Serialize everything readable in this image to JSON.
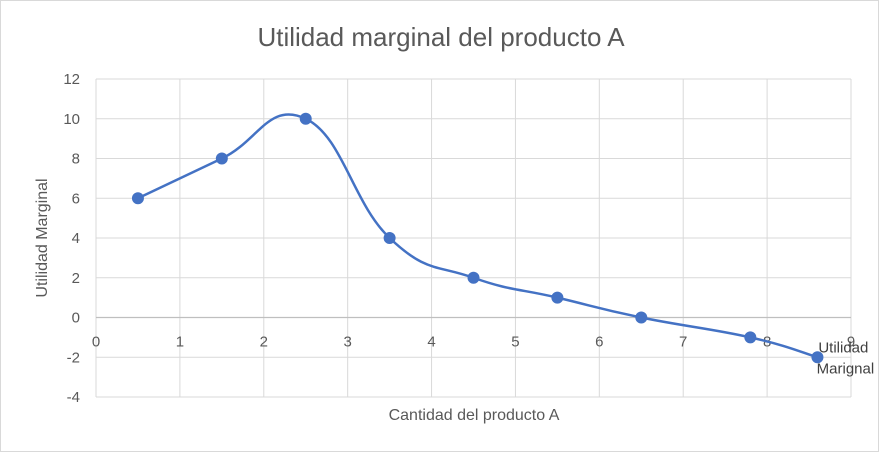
{
  "chart_data": {
    "type": "line",
    "title": "Utilidad marginal del producto A",
    "xlabel": "Cantidad del producto A",
    "ylabel": "Utilidad Marginal",
    "xlim": [
      0,
      9
    ],
    "ylim": [
      -4,
      12
    ],
    "x_ticks": [
      "0",
      "1",
      "2",
      "3",
      "4",
      "5",
      "6",
      "7",
      "8",
      "9"
    ],
    "y_ticks": [
      "-4",
      "-2",
      "0",
      "2",
      "4",
      "6",
      "8",
      "10",
      "12"
    ],
    "grid": true,
    "smooth": true,
    "series": [
      {
        "name": "Utilidad Marignal",
        "color": "#4472c4",
        "x": [
          0.5,
          1.5,
          2.5,
          3.5,
          4.5,
          5.5,
          6.5,
          7.8,
          8.6
        ],
        "y": [
          6,
          8,
          10,
          4,
          2,
          1,
          0,
          -1,
          -2
        ]
      }
    ],
    "series_label_lines": [
      "Utilidad",
      "Marignal"
    ]
  }
}
